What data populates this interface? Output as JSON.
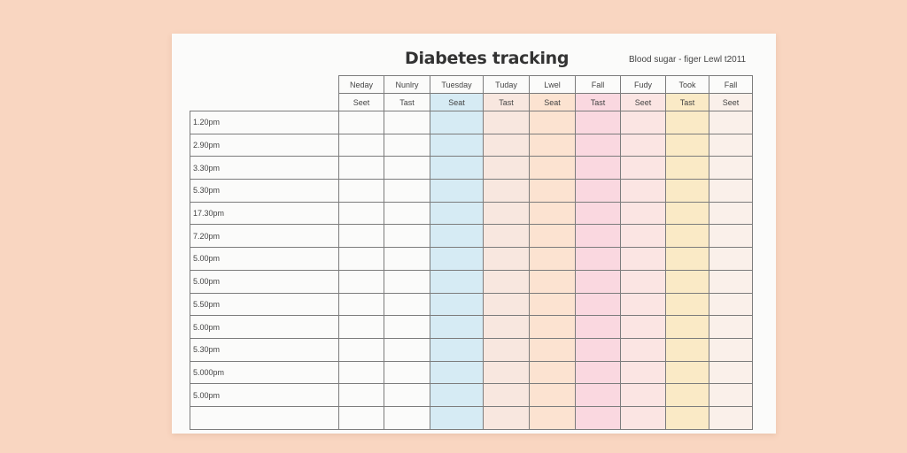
{
  "title": "Diabetes tracking",
  "subtitle": "Blood sugar - figer Lewl t2011",
  "columns": [
    {
      "day": "Neday",
      "sub": "Seet",
      "color": "#fbfbfa"
    },
    {
      "day": "Nunlry",
      "sub": "Tast",
      "color": "#fbfbfa"
    },
    {
      "day": "Tuesday",
      "sub": "Seat",
      "color": "#d6ebf4"
    },
    {
      "day": "Tuday",
      "sub": "Tast",
      "color": "#f8e7df"
    },
    {
      "day": "Lwel",
      "sub": "Seat",
      "color": "#fce3d1"
    },
    {
      "day": "Fall",
      "sub": "Tast",
      "color": "#fad8e0"
    },
    {
      "day": "Fudy",
      "sub": "Seet",
      "color": "#fbe5e3"
    },
    {
      "day": "Took",
      "sub": "Tast",
      "color": "#faeac6"
    },
    {
      "day": "Fall",
      "sub": "Seet",
      "color": "#faf0ea"
    }
  ],
  "times": [
    "1.20pm",
    "2.90pm",
    "3.30pm",
    "5.30pm",
    "17.30pm",
    "7.20pm",
    "5.00pm",
    "5.00pm",
    "5.50pm",
    "5.00pm",
    "5.30pm",
    "5.000pm",
    "5.00pm",
    ""
  ]
}
